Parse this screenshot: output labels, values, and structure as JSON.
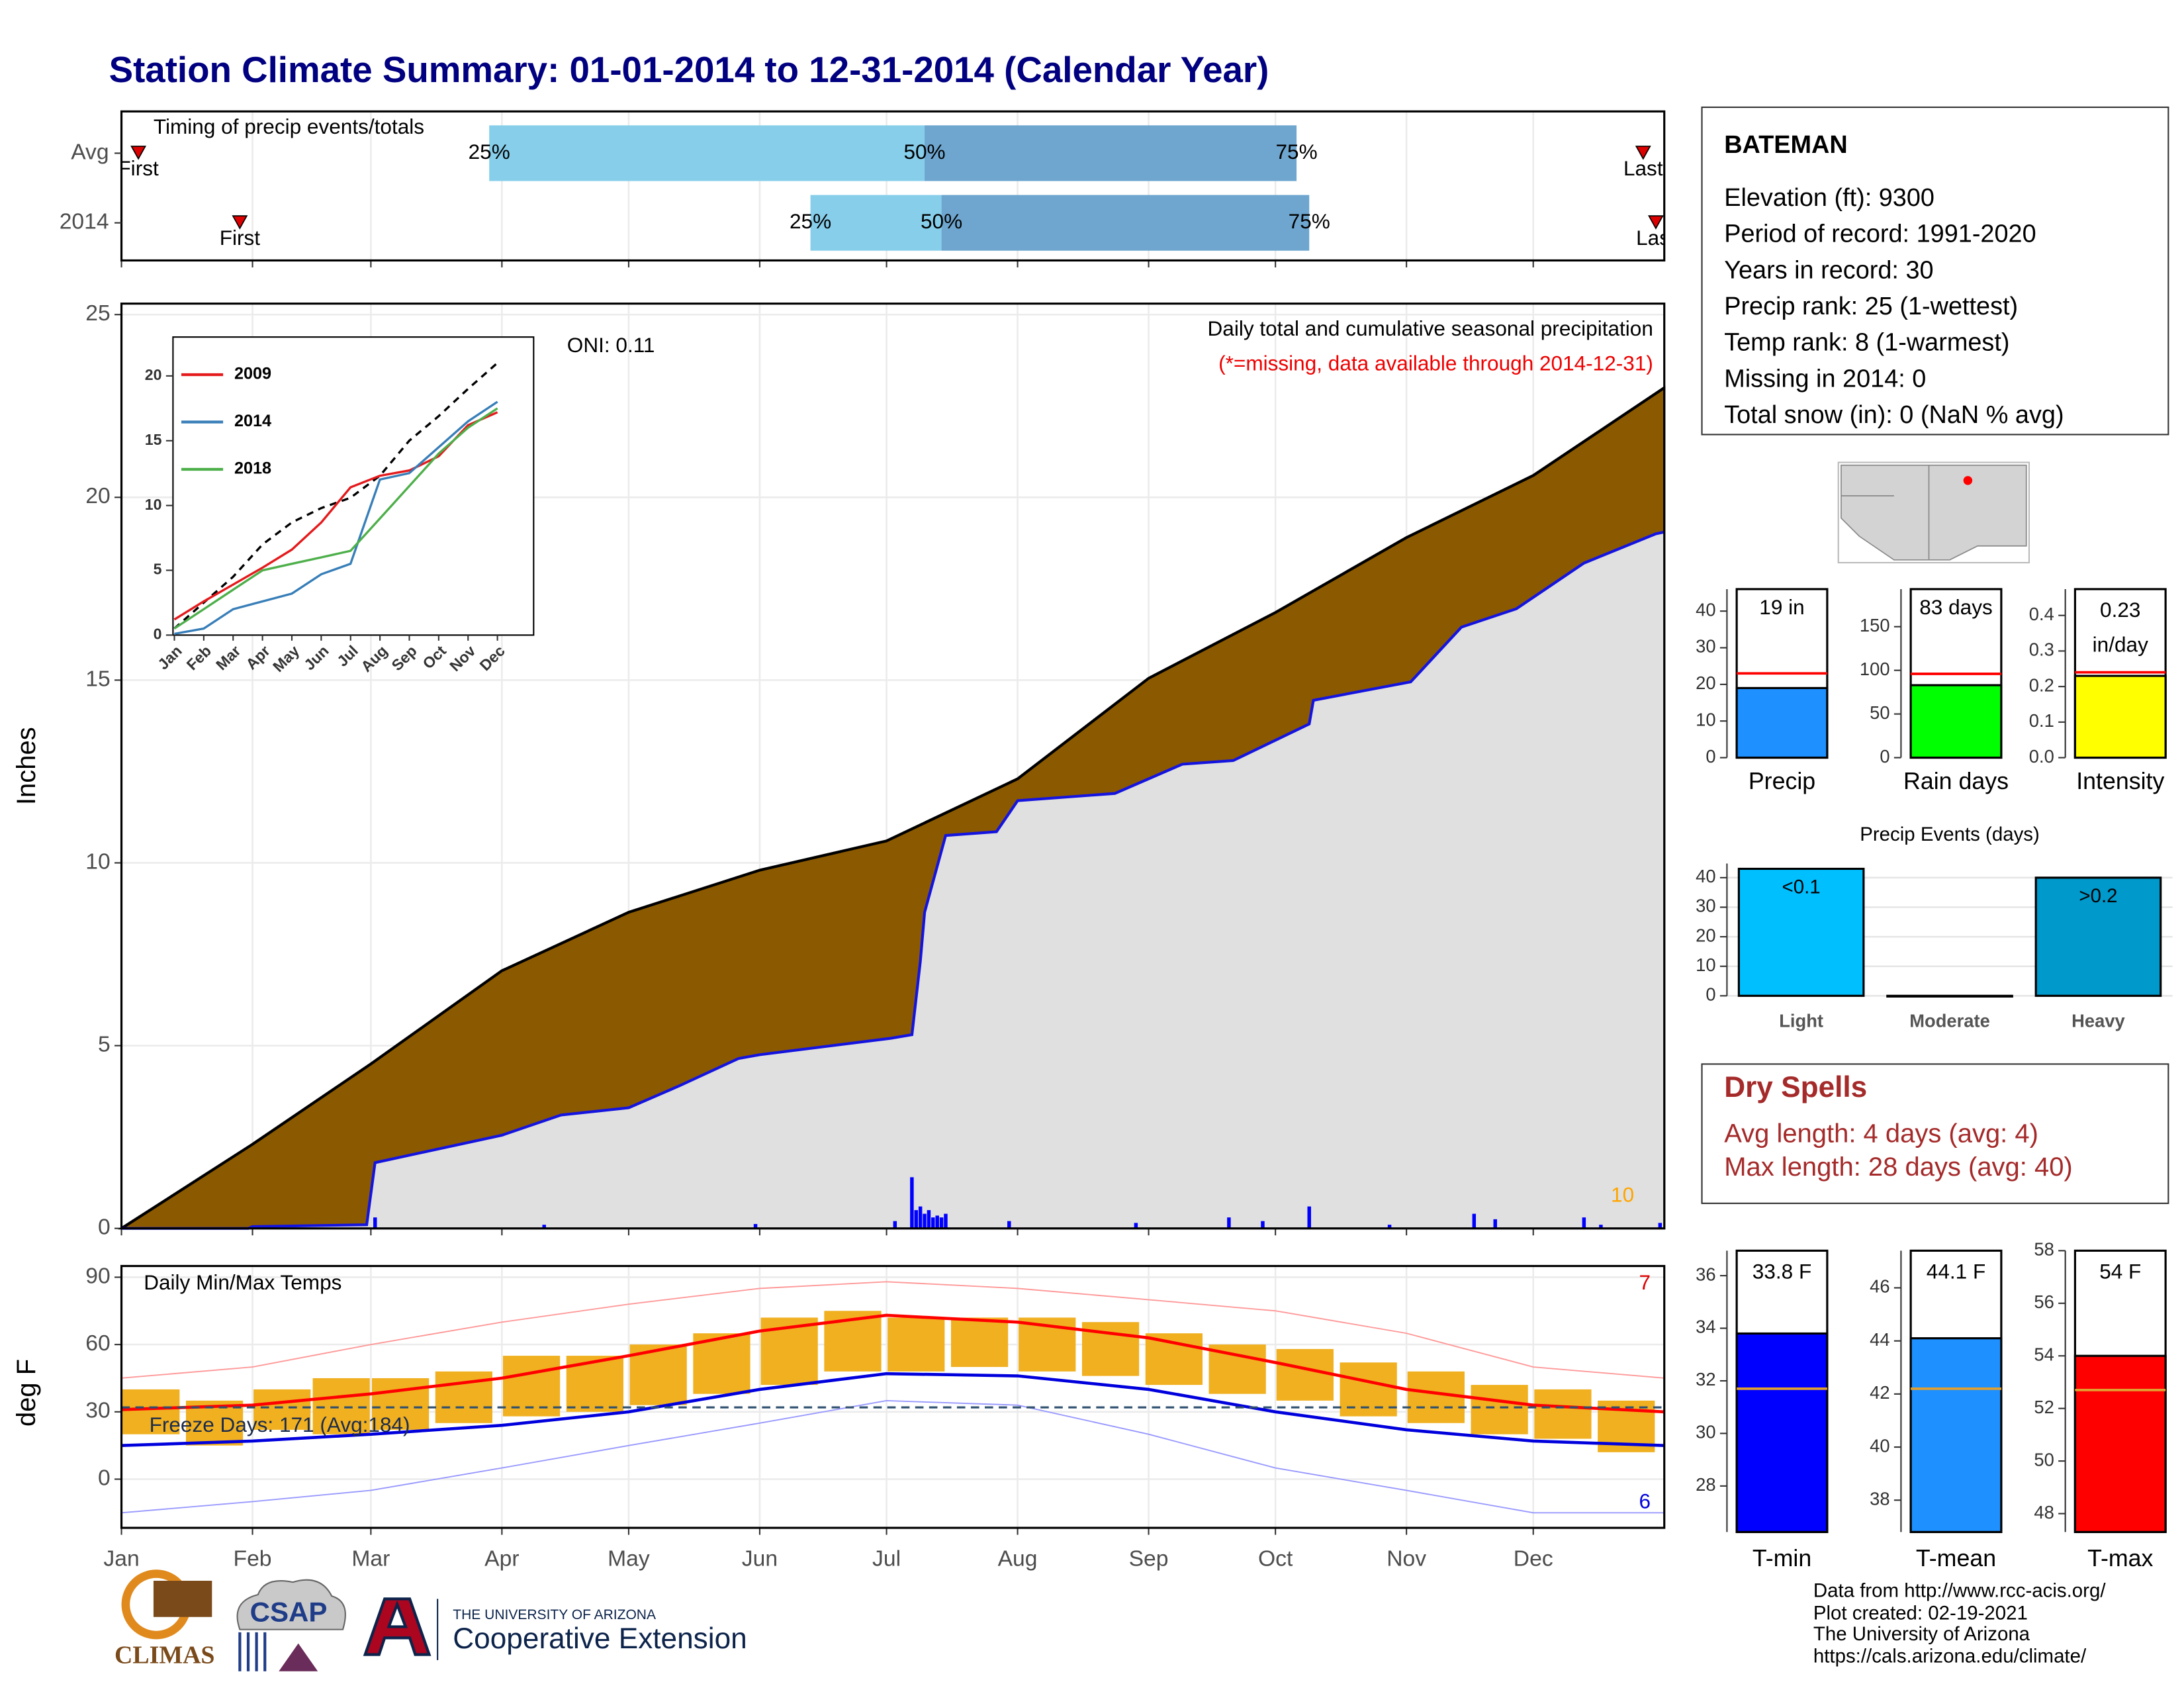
{
  "title": "Station Climate Summary: 01-01-2014 to 12-31-2014 (Calendar Year)",
  "station": {
    "name": "BATEMAN",
    "lines": [
      "Elevation (ft): 9300",
      "Period of record: 1991-2020",
      "Years in record: 30",
      "Precip rank: 25 (1-wettest)",
      "Temp rank: 8 (1-warmest)",
      "Missing in 2014: 0",
      "Total snow (in): 0 (NaN % avg)"
    ]
  },
  "dry_spells": {
    "title": "Dry Spells",
    "lines": [
      "Avg length: 4 days (avg: 4)",
      "Max length: 28 days (avg: 40)"
    ]
  },
  "footer": {
    "logos": [
      "CLIMAS",
      "CSAP"
    ],
    "university": "THE UNIVERSITY OF ARIZONA",
    "extension": "Cooperative Extension",
    "credits": [
      "Data from http://www.rcc-acis.org/",
      "Plot created: 02-19-2021",
      "The University of Arizona",
      "https://cals.arizona.edu/climate/"
    ]
  },
  "chart_data": [
    {
      "type": "timeline",
      "title": "Timing of precip events/totals",
      "categories": [
        "Avg",
        "2014"
      ],
      "xlim": [
        0,
        365
      ],
      "first": [
        4,
        28
      ],
      "q25": [
        87,
        163
      ],
      "q50": [
        190,
        194
      ],
      "q75": [
        278,
        281
      ],
      "last": [
        360,
        363
      ],
      "marker_labels": [
        "First",
        "Last"
      ],
      "quartile_labels": [
        "25%",
        "50%",
        "75%"
      ],
      "colors": [
        "#87ceeb",
        "#6ea6cf"
      ],
      "marker_color": "#dd0000"
    },
    {
      "type": "area",
      "ylabel": "Inches",
      "xlim": [
        0,
        365
      ],
      "ylim": [
        0,
        25.3
      ],
      "yticks": [
        0,
        5,
        10,
        15,
        20,
        25
      ],
      "annotations": [
        {
          "text": "Daily total and cumulative seasonal precipitation",
          "color": "#000000"
        },
        {
          "text": "(*=missing, data available through 2014-12-31)",
          "color": "#ee0000"
        },
        {
          "text": "ONI: 0.11",
          "color": "#000000"
        },
        {
          "text": "10",
          "color": "#ffa500"
        }
      ],
      "average": {
        "x": [
          0,
          31,
          59,
          90,
          120,
          151,
          181,
          212,
          243,
          273,
          304,
          334,
          365
        ],
        "values": [
          0,
          2.3,
          4.5,
          7.05,
          8.65,
          9.8,
          10.6,
          12.3,
          15.05,
          16.85,
          18.9,
          20.6,
          23.0
        ],
        "color": "#8b5a00"
      },
      "observed": {
        "x": [
          0,
          30,
          31,
          58,
          60,
          90,
          104,
          120,
          132,
          146,
          151,
          182,
          187,
          189,
          190,
          195,
          207,
          212,
          235,
          251,
          263,
          281,
          282,
          305,
          317,
          330,
          346,
          363,
          365
        ],
        "values": [
          0,
          0,
          0.05,
          0.1,
          1.8,
          2.55,
          3.1,
          3.3,
          3.9,
          4.65,
          4.75,
          5.2,
          5.3,
          7.3,
          8.65,
          10.75,
          10.85,
          11.7,
          11.9,
          12.7,
          12.8,
          13.8,
          14.45,
          14.95,
          16.45,
          16.95,
          18.2,
          19.0,
          19.05
        ],
        "color": "#1414e0",
        "fill": "#e0e0e0"
      },
      "daily": {
        "x": [
          60,
          100,
          150,
          183,
          187,
          188,
          189,
          190,
          191,
          192,
          193,
          194,
          195,
          210,
          240,
          262,
          270,
          281,
          300,
          320,
          325,
          346,
          350,
          364
        ],
        "values": [
          0.3,
          0.1,
          0.12,
          0.2,
          1.4,
          0.5,
          0.6,
          0.4,
          0.5,
          0.3,
          0.35,
          0.3,
          0.4,
          0.2,
          0.15,
          0.3,
          0.2,
          0.6,
          0.1,
          0.4,
          0.25,
          0.3,
          0.1,
          0.15
        ],
        "color": "#0000ff"
      }
    },
    {
      "type": "line",
      "categories": [
        "Jan",
        "Feb",
        "Mar",
        "Apr",
        "May",
        "Jun",
        "Jul",
        "Aug",
        "Sep",
        "Oct",
        "Nov",
        "Dec"
      ],
      "ylim": [
        0,
        23
      ],
      "yticks": [
        0,
        5,
        10,
        15,
        20
      ],
      "series": [
        {
          "name": "2009",
          "color": "#e41a1c",
          "values": [
            1.2,
            2.6,
            3.9,
            5.2,
            6.6,
            8.7,
            11.4,
            12.3,
            12.7,
            13.8,
            16.2,
            17.2
          ]
        },
        {
          "name": "2014",
          "color": "#377eb8",
          "values": [
            0.1,
            0.5,
            2.0,
            2.6,
            3.2,
            4.7,
            5.5,
            12.0,
            12.5,
            14.5,
            16.5,
            18.0
          ]
        },
        {
          "name": "2018",
          "color": "#4daf4a",
          "values": [
            0.5,
            2.0,
            3.5,
            5.0,
            5.5,
            6.0,
            6.5,
            9.0,
            11.5,
            14.0,
            16.0,
            17.5
          ]
        }
      ],
      "reference": {
        "values": [
          0.5,
          2.5,
          4.5,
          7.0,
          8.7,
          9.8,
          10.6,
          12.3,
          15.0,
          16.9,
          19.0,
          21.0
        ],
        "color": "#000000"
      }
    },
    {
      "type": "range",
      "title": "Daily Min/Max Temps",
      "ylabel": "deg F",
      "xlim": [
        0,
        365
      ],
      "ylim": [
        -21.7,
        95
      ],
      "yticks": [
        0,
        30,
        60,
        90
      ],
      "xticks": [
        {
          "value": 0,
          "label": "Jan"
        },
        {
          "value": 31,
          "label": "Feb"
        },
        {
          "value": 59,
          "label": "Mar"
        },
        {
          "value": 90,
          "label": "Apr"
        },
        {
          "value": 120,
          "label": "May"
        },
        {
          "value": 151,
          "label": "Jun"
        },
        {
          "value": 181,
          "label": "Jul"
        },
        {
          "value": 212,
          "label": "Aug"
        },
        {
          "value": 243,
          "label": "Sep"
        },
        {
          "value": 273,
          "label": "Oct"
        },
        {
          "value": 304,
          "label": "Nov"
        },
        {
          "value": 334,
          "label": "Dec"
        }
      ],
      "ranges": {
        "x": [
          7,
          22,
          38,
          52,
          66,
          81,
          97,
          112,
          127,
          142,
          158,
          173,
          188,
          203,
          219,
          234,
          249,
          264,
          280,
          295,
          311,
          326,
          341,
          356
        ],
        "lows": [
          20,
          15,
          22,
          20,
          22,
          25,
          28,
          30,
          33,
          38,
          42,
          48,
          48,
          50,
          48,
          46,
          42,
          38,
          35,
          28,
          25,
          20,
          18,
          12
        ],
        "highs": [
          40,
          35,
          40,
          45,
          45,
          48,
          55,
          55,
          60,
          65,
          72,
          75,
          72,
          72,
          72,
          70,
          65,
          60,
          58,
          52,
          48,
          42,
          40,
          35
        ],
        "color": "#f0b020"
      },
      "lines": [
        {
          "x": [
            0,
            31,
            59,
            90,
            120,
            151,
            181,
            212,
            243,
            273,
            304,
            334,
            365
          ],
          "values": [
            45,
            50,
            60,
            70,
            78,
            85,
            88,
            85,
            80,
            75,
            65,
            50,
            45
          ],
          "color": "#ff9999"
        },
        {
          "x": [
            0,
            31,
            59,
            90,
            120,
            151,
            181,
            212,
            243,
            273,
            304,
            334,
            365
          ],
          "values": [
            -15,
            -10,
            -5,
            5,
            15,
            25,
            35,
            33,
            20,
            5,
            -5,
            -15,
            -15
          ],
          "color": "#9999ff"
        },
        {
          "x": [
            0,
            31,
            59,
            90,
            120,
            151,
            181,
            212,
            243,
            273,
            304,
            334,
            365
          ],
          "values": [
            31,
            33,
            38,
            45,
            55,
            66,
            73,
            70,
            63,
            52,
            40,
            33,
            30
          ],
          "color": "#ff0000"
        },
        {
          "x": [
            0,
            31,
            59,
            90,
            120,
            151,
            181,
            212,
            243,
            273,
            304,
            334,
            365
          ],
          "values": [
            15,
            17,
            20,
            24,
            30,
            40,
            47,
            46,
            40,
            30,
            22,
            17,
            15
          ],
          "color": "#0000dd"
        }
      ],
      "freeze_line": 32,
      "freeze_label": "Freeze Days: 171 (Avg:184)",
      "counts": [
        {
          "value": 7,
          "color": "#dd0000"
        },
        {
          "value": 6,
          "color": "#0000dd"
        }
      ]
    },
    {
      "type": "bar",
      "categories": [
        "Precip"
      ],
      "values": [
        19
      ],
      "value_labels": [
        "19 in"
      ],
      "average": 23,
      "average_color": "#ff0000",
      "color": "#1e90ff",
      "ylim": [
        0,
        46
      ],
      "yticks": [
        0,
        10,
        20,
        30,
        40
      ]
    },
    {
      "type": "bar",
      "categories": [
        "Rain days"
      ],
      "values": [
        83
      ],
      "value_labels": [
        "83 days"
      ],
      "average": 96,
      "average_color": "#ff0000",
      "color": "#00ff00",
      "ylim": [
        0,
        193
      ],
      "yticks": [
        0,
        50,
        100,
        150
      ]
    },
    {
      "type": "bar",
      "categories": [
        "Intensity"
      ],
      "values": [
        0.23
      ],
      "value_labels": [
        "0.23"
      ],
      "unit": "in/day",
      "average": 0.24,
      "average_color": "#ff0000",
      "color": "#ffff00",
      "ylim": [
        0,
        0.474
      ],
      "yticks": [
        {
          "value": 0,
          "label": "0.0"
        },
        0.1,
        0.2,
        0.3,
        0.4
      ]
    },
    {
      "type": "bar",
      "title": "Precip Events (days)",
      "categories": [
        "Light",
        "Moderate",
        "Heavy"
      ],
      "values": [
        43,
        0,
        40
      ],
      "bar_labels": [
        "<0.1",
        null,
        ">0.2"
      ],
      "colors": [
        "#00bfff",
        "#666666",
        "#0099cc"
      ],
      "ylim": [
        0,
        44.8
      ],
      "yticks": [
        0,
        10,
        20,
        30,
        40
      ],
      "grid": true
    },
    {
      "type": "bar",
      "categories": [
        "T-min"
      ],
      "values": [
        33.8
      ],
      "value_labels": [
        "33.8 F"
      ],
      "average": 31.7,
      "average_color": "#e0a030",
      "color": "#0000ff",
      "ylim": [
        26.25,
        36.95
      ],
      "yticks": [
        28,
        30,
        32,
        34,
        36
      ]
    },
    {
      "type": "bar",
      "categories": [
        "T-mean"
      ],
      "values": [
        44.1
      ],
      "value_labels": [
        "44.1 F"
      ],
      "average": 42.2,
      "average_color": "#e0a030",
      "color": "#1e90ff",
      "ylim": [
        36.8,
        47.4
      ],
      "yticks": [
        38,
        40,
        42,
        44,
        46
      ]
    },
    {
      "type": "bar",
      "categories": [
        "T-max"
      ],
      "values": [
        54
      ],
      "value_labels": [
        "54 F"
      ],
      "average": 52.7,
      "average_color": "#e0a030",
      "color": "#ff0000",
      "ylim": [
        47.3,
        58
      ],
      "yticks": [
        48,
        50,
        52,
        54,
        56,
        58
      ]
    }
  ]
}
